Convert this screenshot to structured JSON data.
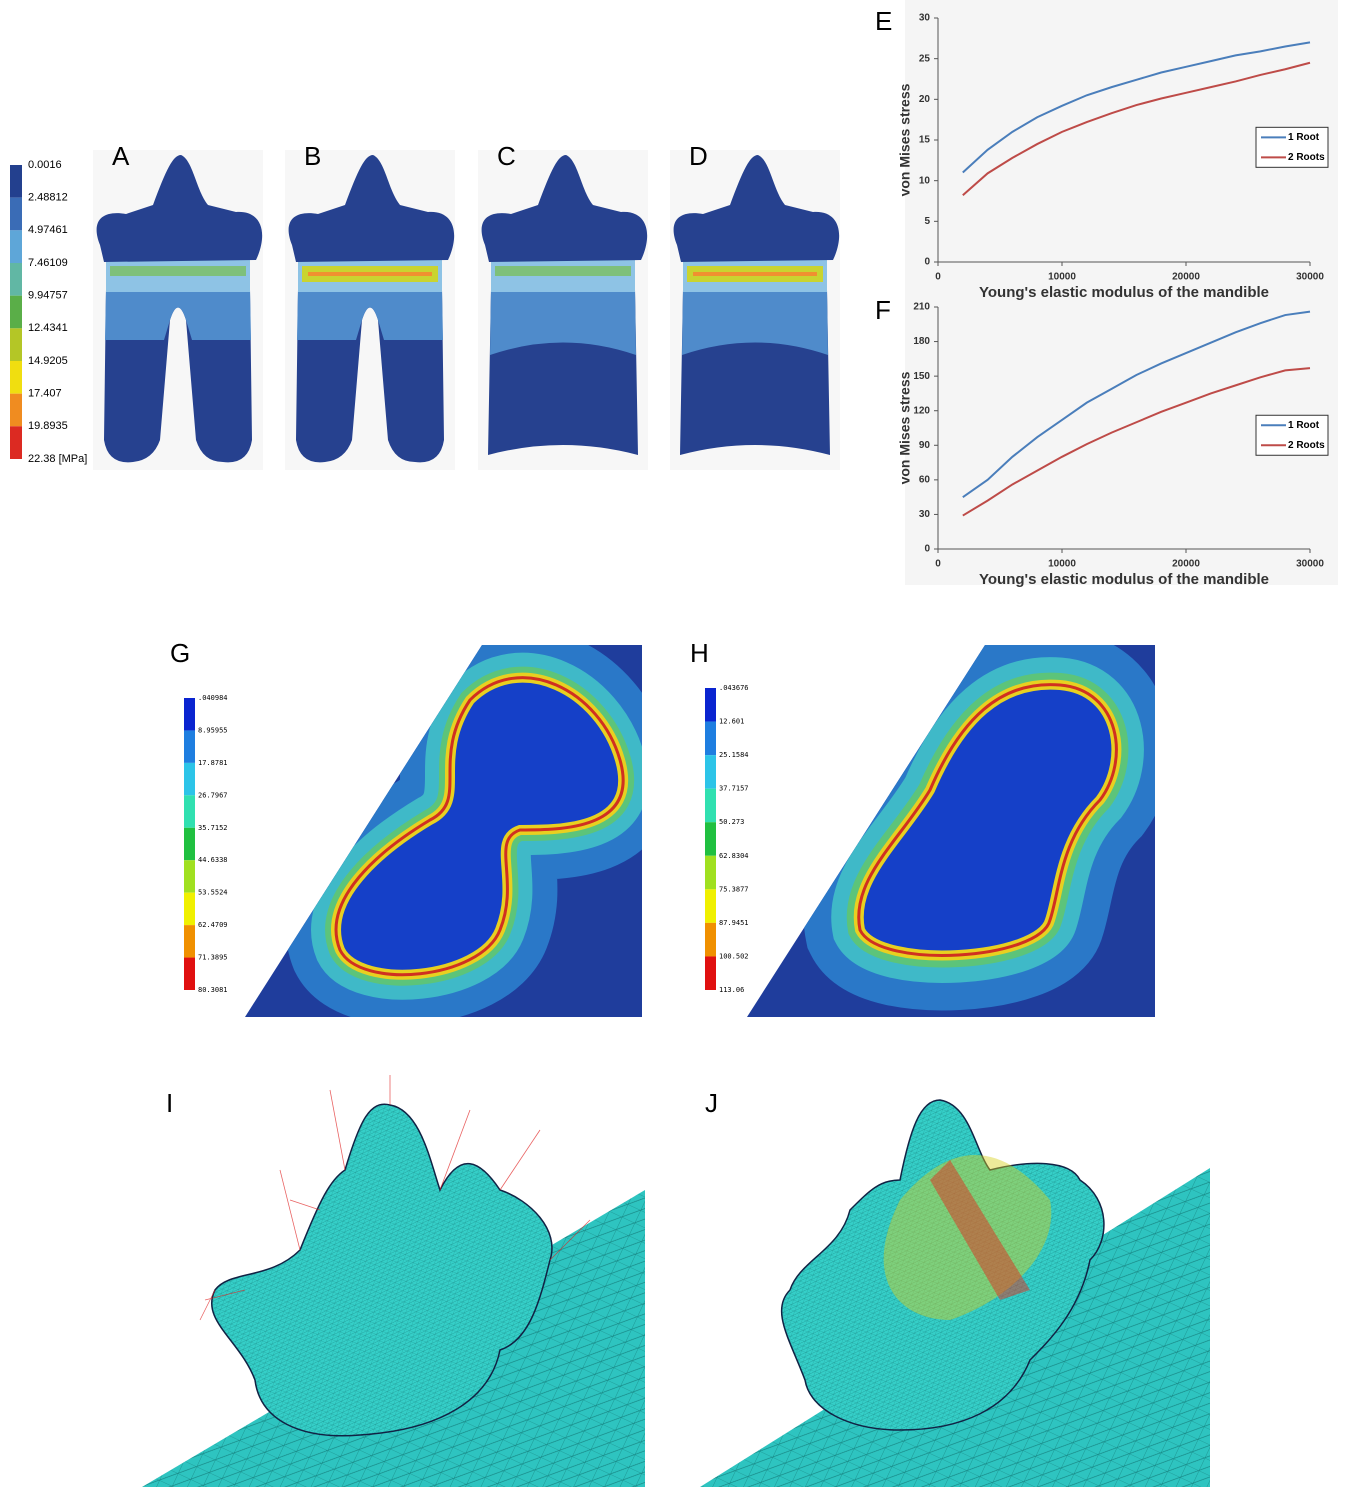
{
  "stress_panels": {
    "labels": [
      "A",
      "B",
      "C",
      "D"
    ],
    "scale": [
      "0.0016",
      "2.48812",
      "4.97461",
      "7.46109",
      "9.94757",
      "12.4341",
      "14.9205",
      "17.407",
      "19.8935",
      "22.38 [MPa]"
    ]
  },
  "chart_data": [
    {
      "type": "line",
      "panel_label": "E",
      "y_label": "von Mises stress",
      "x_label": "Young's elastic modulus of the mandible",
      "x": [
        2000,
        4000,
        6000,
        8000,
        10000,
        12000,
        14000,
        16000,
        18000,
        20000,
        22000,
        24000,
        26000,
        28000,
        30000
      ],
      "series": [
        {
          "name": "1 Root",
          "color": "#4a7ebb",
          "values": [
            11,
            13.8,
            16,
            17.8,
            19.2,
            20.5,
            21.5,
            22.4,
            23.3,
            24,
            24.7,
            25.4,
            25.9,
            26.5,
            27
          ]
        },
        {
          "name": "2 Roots",
          "color": "#be4b48",
          "values": [
            8.2,
            10.9,
            12.8,
            14.5,
            16,
            17.2,
            18.3,
            19.3,
            20.1,
            20.8,
            21.5,
            22.2,
            23,
            23.7,
            24.5
          ]
        }
      ],
      "xlim": [
        0,
        30000
      ],
      "xticks": [
        0,
        10000,
        20000,
        30000
      ],
      "ylim": [
        0,
        30
      ],
      "yticks": [
        0,
        5,
        10,
        15,
        20,
        25,
        30
      ],
      "legend": "right"
    },
    {
      "type": "line",
      "panel_label": "F",
      "y_label": "von Mises stress",
      "x_label": "Young's elastic modulus of the mandible",
      "x": [
        2000,
        4000,
        6000,
        8000,
        10000,
        12000,
        14000,
        16000,
        18000,
        20000,
        22000,
        24000,
        26000,
        28000,
        30000
      ],
      "series": [
        {
          "name": "1 Root",
          "color": "#4a7ebb",
          "values": [
            45,
            60,
            80,
            97,
            112,
            127,
            139,
            151,
            161,
            170,
            179,
            188,
            196,
            203,
            206
          ]
        },
        {
          "name": "2 Roots",
          "color": "#be4b48",
          "values": [
            29,
            42,
            56,
            68,
            80,
            91,
            101,
            110,
            119,
            127,
            135,
            142,
            149,
            155,
            157
          ]
        }
      ],
      "xlim": [
        0,
        30000
      ],
      "xticks": [
        0,
        10000,
        20000,
        30000
      ],
      "ylim": [
        0,
        210
      ],
      "yticks": [
        0,
        30,
        60,
        90,
        120,
        150,
        180,
        210
      ],
      "legend": "right"
    }
  ],
  "fea_panels": [
    {
      "label": "G",
      "scale": [
        ".040984",
        "8.95955",
        "17.8781",
        "26.7967",
        "35.7152",
        "44.6338",
        "53.5524",
        "62.4709",
        "71.3895",
        "80.3081"
      ]
    },
    {
      "label": "H",
      "scale": [
        ".043676",
        "12.601",
        "25.1584",
        "37.7157",
        "50.273",
        "62.8304",
        "75.3877",
        "87.9451",
        "100.502",
        "113.06"
      ]
    }
  ],
  "mesh_panels": {
    "labels": [
      "I",
      "J"
    ]
  }
}
